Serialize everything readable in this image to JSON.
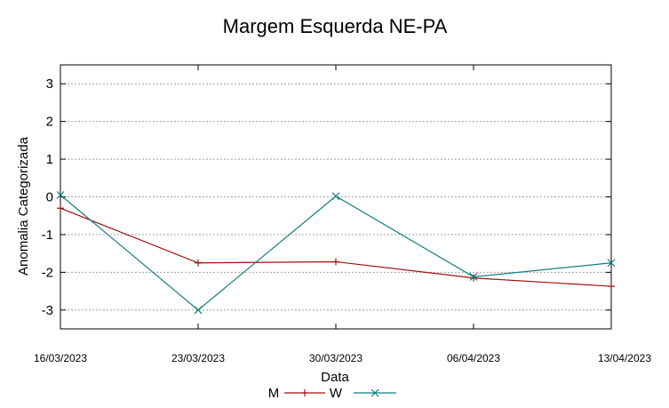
{
  "chart_data": {
    "type": "line",
    "title": "Margem Esquerda NE-PA",
    "xlabel": "Data",
    "ylabel": "Anomalia Categorizada",
    "categories": [
      "16/03/2023",
      "23/03/2023",
      "30/03/2023",
      "06/04/2023",
      "13/04/2023"
    ],
    "ylim": [
      -3.5,
      3.5
    ],
    "yticks": [
      -3,
      -2,
      -1,
      0,
      1,
      2,
      3
    ],
    "grid": true,
    "legend_position": "bottom",
    "series": [
      {
        "name": "M",
        "color": "#a01010",
        "marker": "plus",
        "values": [
          -0.3,
          -1.75,
          -1.72,
          -2.15,
          -2.37
        ]
      },
      {
        "name": "W",
        "color": "#117e7e",
        "marker": "cross",
        "values": [
          0.05,
          -3.0,
          0.02,
          -2.12,
          -1.75
        ]
      }
    ]
  }
}
